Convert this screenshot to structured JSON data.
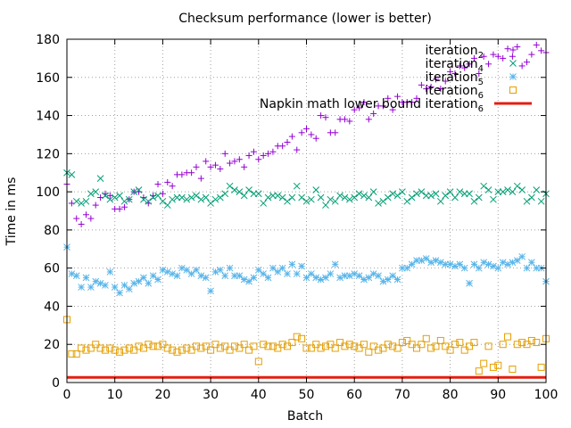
{
  "chart_data": {
    "type": "scatter",
    "title": "Checksum performance (lower is better)",
    "xlabel": "Batch",
    "ylabel": "Time in ms",
    "xlim": [
      0,
      100
    ],
    "ylim": [
      0,
      180
    ],
    "x_ticks": [
      "0",
      "10",
      "20",
      "30",
      "40",
      "50",
      "60",
      "70",
      "80",
      "90",
      "100"
    ],
    "y_ticks": [
      "0",
      "20",
      "40",
      "60",
      "80",
      "100",
      "120",
      "140",
      "160",
      "180"
    ],
    "grid": true,
    "legend_position": "top-right",
    "series": [
      {
        "name": "iteration",
        "subscript": "2",
        "marker": "plus",
        "color": "#9400d3",
        "values": [
          104,
          94,
          86,
          83,
          88,
          86,
          93,
          97,
          99,
          98,
          91,
          91,
          92,
          96,
          100,
          100,
          97,
          94,
          98,
          104,
          99,
          105,
          103,
          109,
          109,
          110,
          110,
          113,
          107,
          116,
          113,
          114,
          112,
          120,
          115,
          116,
          117,
          113,
          119,
          121,
          117,
          119,
          120,
          121,
          124,
          124,
          126,
          129,
          122,
          131,
          133,
          130,
          128,
          140,
          139,
          131,
          131,
          138,
          138,
          137,
          143,
          144,
          147,
          138,
          141,
          145,
          145,
          149,
          143,
          150,
          147,
          147,
          147,
          149,
          156,
          154,
          155,
          159,
          154,
          158,
          163,
          162,
          166,
          165,
          167,
          170,
          162,
          171,
          167,
          172,
          171,
          170,
          175,
          171,
          176,
          166,
          168,
          172,
          177,
          174,
          173
        ]
      },
      {
        "name": "iteration",
        "subscript": "4",
        "marker": "cross",
        "color": "#009e73",
        "values": [
          110,
          109,
          95,
          94,
          95,
          99,
          100,
          107,
          98,
          96,
          97,
          98,
          95,
          96,
          100,
          101,
          96,
          95,
          97,
          98,
          95,
          93,
          96,
          97,
          97,
          96,
          97,
          98,
          96,
          97,
          94,
          96,
          97,
          99,
          103,
          101,
          100,
          98,
          101,
          99,
          99,
          94,
          97,
          98,
          98,
          97,
          95,
          97,
          103,
          97,
          95,
          96,
          101,
          97,
          93,
          96,
          95,
          98,
          97,
          96,
          97,
          99,
          98,
          97,
          100,
          94,
          95,
          97,
          99,
          98,
          100,
          95,
          97,
          99,
          100,
          98,
          98,
          99,
          95,
          98,
          100,
          97,
          100,
          99,
          99,
          95,
          97,
          103,
          101,
          96,
          100,
          100,
          101,
          100,
          103,
          101,
          95,
          97,
          101,
          95,
          99
        ]
      },
      {
        "name": "iteration",
        "subscript": "5",
        "marker": "star",
        "color": "#56b4e9",
        "values": [
          71,
          57,
          56,
          50,
          55,
          50,
          53,
          52,
          51,
          58,
          50,
          47,
          51,
          49,
          52,
          53,
          55,
          52,
          56,
          54,
          59,
          58,
          57,
          56,
          60,
          59,
          57,
          59,
          56,
          55,
          48,
          58,
          59,
          56,
          60,
          56,
          56,
          54,
          53,
          55,
          59,
          57,
          55,
          60,
          58,
          60,
          57,
          62,
          57,
          61,
          55,
          57,
          55,
          54,
          55,
          57,
          62,
          55,
          56,
          56,
          57,
          56,
          54,
          55,
          57,
          56,
          53,
          54,
          56,
          54,
          60,
          60,
          62,
          64,
          64,
          65,
          63,
          64,
          63,
          62,
          62,
          61,
          62,
          60,
          52,
          62,
          60,
          63,
          62,
          61,
          60,
          63,
          62,
          63,
          64,
          66,
          60,
          63,
          60,
          60,
          53
        ]
      },
      {
        "name": "iteration",
        "subscript": "6",
        "marker": "square",
        "color": "#e69f00",
        "values": [
          33,
          15,
          15,
          18,
          17,
          18,
          20,
          18,
          17,
          18,
          17,
          16,
          17,
          18,
          17,
          19,
          18,
          20,
          19,
          19,
          20,
          18,
          17,
          16,
          17,
          18,
          17,
          19,
          18,
          19,
          17,
          20,
          18,
          19,
          17,
          19,
          18,
          20,
          17,
          19,
          11,
          20,
          19,
          19,
          18,
          20,
          19,
          21,
          24,
          23,
          18,
          18,
          20,
          18,
          19,
          20,
          18,
          21,
          19,
          20,
          19,
          18,
          20,
          16,
          19,
          17,
          18,
          20,
          19,
          18,
          21,
          22,
          20,
          18,
          20,
          23,
          18,
          19,
          22,
          19,
          17,
          20,
          21,
          17,
          19,
          21,
          6,
          10,
          19,
          8,
          9,
          20,
          24,
          7,
          20,
          21,
          20,
          22,
          21,
          8,
          23
        ]
      },
      {
        "name": "Napkin math lower bound iteration",
        "subscript": "6",
        "marker": "line",
        "color": "#e51e10",
        "values": [
          2.7,
          2.7
        ]
      }
    ]
  }
}
